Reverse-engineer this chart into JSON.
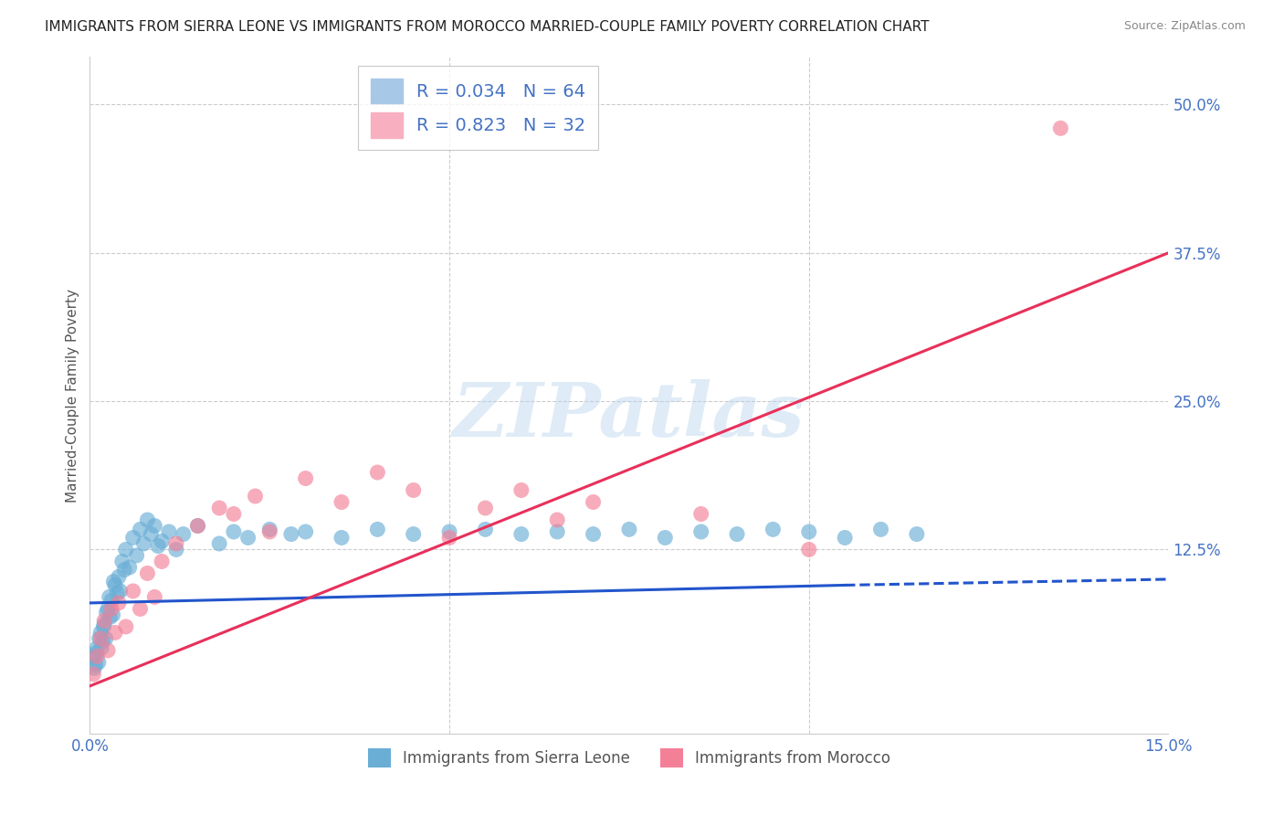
{
  "title": "IMMIGRANTS FROM SIERRA LEONE VS IMMIGRANTS FROM MOROCCO MARRIED-COUPLE FAMILY POVERTY CORRELATION CHART",
  "source": "Source: ZipAtlas.com",
  "ylabel": "Married-Couple Family Poverty",
  "watermark": "ZIPatlas",
  "xlim": [
    0.0,
    15.0
  ],
  "ylim": [
    -3.0,
    54.0
  ],
  "ytick_vals": [
    0,
    12.5,
    25.0,
    37.5,
    50.0
  ],
  "ytick_labels": [
    "",
    "12.5%",
    "25.0%",
    "37.5%",
    "50.0%"
  ],
  "xtick_vals": [
    0.0,
    5.0,
    10.0,
    15.0
  ],
  "xtick_labels": [
    "0.0%",
    "",
    "",
    "15.0%"
  ],
  "legend_labels_bottom": [
    "Immigrants from Sierra Leone",
    "Immigrants from Morocco"
  ],
  "sierra_leone_color": "#6aaed6",
  "morocco_color": "#f48098",
  "sierra_leone_line_color": "#2255cc",
  "morocco_line_color": "#e8305a",
  "sierra_leone_scatter": [
    [
      0.05,
      3.5
    ],
    [
      0.08,
      2.8
    ],
    [
      0.1,
      4.2
    ],
    [
      0.12,
      3.0
    ],
    [
      0.15,
      5.5
    ],
    [
      0.18,
      4.8
    ],
    [
      0.2,
      6.2
    ],
    [
      0.22,
      5.0
    ],
    [
      0.25,
      7.5
    ],
    [
      0.28,
      6.8
    ],
    [
      0.3,
      8.2
    ],
    [
      0.32,
      7.0
    ],
    [
      0.35,
      9.5
    ],
    [
      0.38,
      8.8
    ],
    [
      0.4,
      10.2
    ],
    [
      0.42,
      9.0
    ],
    [
      0.45,
      11.5
    ],
    [
      0.48,
      10.8
    ],
    [
      0.5,
      12.5
    ],
    [
      0.55,
      11.0
    ],
    [
      0.6,
      13.5
    ],
    [
      0.65,
      12.0
    ],
    [
      0.7,
      14.2
    ],
    [
      0.75,
      13.0
    ],
    [
      0.8,
      15.0
    ],
    [
      0.85,
      13.8
    ],
    [
      0.9,
      14.5
    ],
    [
      0.95,
      12.8
    ],
    [
      1.0,
      13.2
    ],
    [
      1.1,
      14.0
    ],
    [
      1.2,
      12.5
    ],
    [
      1.3,
      13.8
    ],
    [
      1.5,
      14.5
    ],
    [
      1.8,
      13.0
    ],
    [
      2.0,
      14.0
    ],
    [
      2.2,
      13.5
    ],
    [
      2.5,
      14.2
    ],
    [
      2.8,
      13.8
    ],
    [
      3.0,
      14.0
    ],
    [
      3.5,
      13.5
    ],
    [
      4.0,
      14.2
    ],
    [
      4.5,
      13.8
    ],
    [
      5.0,
      14.0
    ],
    [
      5.5,
      14.2
    ],
    [
      6.0,
      13.8
    ],
    [
      6.5,
      14.0
    ],
    [
      7.0,
      13.8
    ],
    [
      7.5,
      14.2
    ],
    [
      8.0,
      13.5
    ],
    [
      8.5,
      14.0
    ],
    [
      9.0,
      13.8
    ],
    [
      9.5,
      14.2
    ],
    [
      10.0,
      14.0
    ],
    [
      10.5,
      13.5
    ],
    [
      11.0,
      14.2
    ],
    [
      11.5,
      13.8
    ],
    [
      0.06,
      2.5
    ],
    [
      0.09,
      3.8
    ],
    [
      0.13,
      5.0
    ],
    [
      0.16,
      4.2
    ],
    [
      0.19,
      6.0
    ],
    [
      0.23,
      7.2
    ],
    [
      0.27,
      8.5
    ],
    [
      0.33,
      9.8
    ]
  ],
  "morocco_scatter": [
    [
      0.05,
      2.0
    ],
    [
      0.1,
      3.5
    ],
    [
      0.15,
      5.0
    ],
    [
      0.2,
      6.5
    ],
    [
      0.25,
      4.0
    ],
    [
      0.3,
      7.5
    ],
    [
      0.35,
      5.5
    ],
    [
      0.4,
      8.0
    ],
    [
      0.5,
      6.0
    ],
    [
      0.6,
      9.0
    ],
    [
      0.7,
      7.5
    ],
    [
      0.8,
      10.5
    ],
    [
      0.9,
      8.5
    ],
    [
      1.0,
      11.5
    ],
    [
      1.2,
      13.0
    ],
    [
      1.5,
      14.5
    ],
    [
      1.8,
      16.0
    ],
    [
      2.0,
      15.5
    ],
    [
      2.3,
      17.0
    ],
    [
      2.5,
      14.0
    ],
    [
      3.0,
      18.5
    ],
    [
      3.5,
      16.5
    ],
    [
      4.0,
      19.0
    ],
    [
      4.5,
      17.5
    ],
    [
      5.0,
      13.5
    ],
    [
      5.5,
      16.0
    ],
    [
      6.0,
      17.5
    ],
    [
      6.5,
      15.0
    ],
    [
      7.0,
      16.5
    ],
    [
      8.5,
      15.5
    ],
    [
      10.0,
      12.5
    ],
    [
      13.5,
      48.0
    ]
  ],
  "sierra_leone_line_solid": {
    "x0": 0.0,
    "x1": 10.5,
    "y0": 8.0,
    "y1": 9.5
  },
  "sierra_leone_line_dashed": {
    "x0": 10.5,
    "x1": 15.0,
    "y0": 9.5,
    "y1": 10.0
  },
  "morocco_line": {
    "x0": 0.0,
    "x1": 15.0,
    "y0": 1.0,
    "y1": 37.5
  },
  "background_color": "#ffffff",
  "grid_color": "#cccccc",
  "title_color": "#222222",
  "axis_label_color": "#555555",
  "tick_color": "#4472c4",
  "title_fontsize": 11,
  "source_fontsize": 9,
  "legend_top_r1": "R = 0.034",
  "legend_top_n1": "N = 64",
  "legend_top_r2": "R = 0.823",
  "legend_top_n2": "N = 32"
}
